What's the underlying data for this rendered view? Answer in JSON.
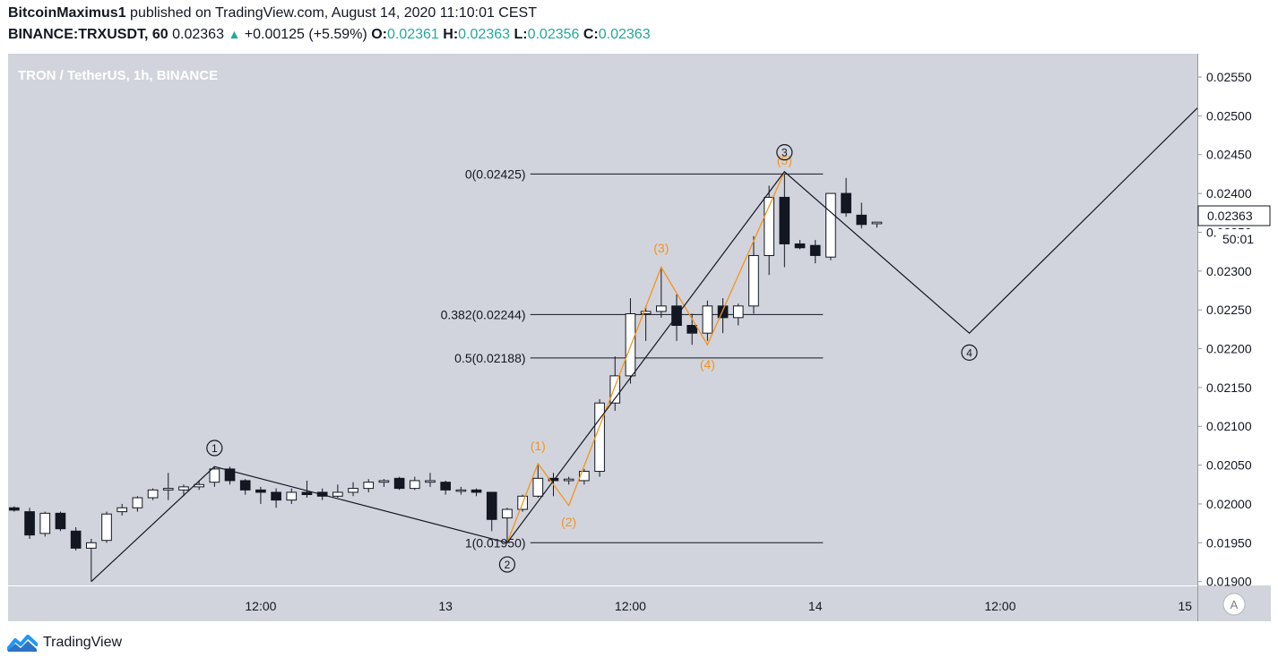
{
  "header": {
    "author": "BitcoinMaximus1",
    "published": " published on TradingView.com, August 14, 2020 11:10:01 CEST",
    "symbol": "BINANCE:TRXUSDT, 60",
    "price": "0.02363",
    "change": "+0.00125 (+5.59%)",
    "o_label": "O:",
    "o_value": "0.02361",
    "h_label": "H:",
    "h_value": "0.02363",
    "l_label": "L:",
    "l_value": "0.02356",
    "c_label": "C:",
    "c_value": "0.02363"
  },
  "footer": {
    "brand": "TradingView",
    "logo_icon": "tradingview-logo-icon"
  },
  "chart_data": {
    "type": "candlestick",
    "title": "TRON / TetherUS, 1h, BINANCE",
    "ylim": [
      0.01895,
      0.0258
    ],
    "y_ticks": [
      "0.02550",
      "0.02500",
      "0.02450",
      "0.02400",
      "0.02350",
      "0.02300",
      "0.02250",
      "0.02200",
      "0.02150",
      "0.02100",
      "0.02050",
      "0.02000",
      "0.01950",
      "0.01900"
    ],
    "x_ticks": [
      {
        "label": "12:00",
        "i": 16
      },
      {
        "label": "13",
        "i": 28
      },
      {
        "label": "12:00",
        "i": 40
      },
      {
        "label": "14",
        "i": 52
      },
      {
        "label": "12:00",
        "i": 64
      },
      {
        "label": "15",
        "i": 76
      }
    ],
    "x_range_bars": [
      -0.4,
      76.8
    ],
    "price_label": "0.02363",
    "countdown": "50:01",
    "candles": [
      {
        "o": 0.01995,
        "h": 0.01997,
        "l": 0.0199,
        "c": 0.01992
      },
      {
        "o": 0.0199,
        "h": 0.01995,
        "l": 0.01955,
        "c": 0.0196
      },
      {
        "o": 0.01962,
        "h": 0.0199,
        "l": 0.01958,
        "c": 0.01988
      },
      {
        "o": 0.01988,
        "h": 0.0199,
        "l": 0.01965,
        "c": 0.01968
      },
      {
        "o": 0.01965,
        "h": 0.0197,
        "l": 0.0194,
        "c": 0.01943
      },
      {
        "o": 0.01943,
        "h": 0.01955,
        "l": 0.019,
        "c": 0.0195
      },
      {
        "o": 0.01953,
        "h": 0.0199,
        "l": 0.0195,
        "c": 0.01987
      },
      {
        "o": 0.0199,
        "h": 0.02,
        "l": 0.01985,
        "c": 0.01995
      },
      {
        "o": 0.01995,
        "h": 0.0201,
        "l": 0.0199,
        "c": 0.02008
      },
      {
        "o": 0.02008,
        "h": 0.0202,
        "l": 0.02005,
        "c": 0.02018
      },
      {
        "o": 0.02018,
        "h": 0.0204,
        "l": 0.02005,
        "c": 0.0202
      },
      {
        "o": 0.02018,
        "h": 0.02025,
        "l": 0.0201,
        "c": 0.02022
      },
      {
        "o": 0.02022,
        "h": 0.0203,
        "l": 0.02018,
        "c": 0.02025
      },
      {
        "o": 0.02028,
        "h": 0.02048,
        "l": 0.02022,
        "c": 0.02045
      },
      {
        "o": 0.02045,
        "h": 0.02048,
        "l": 0.02025,
        "c": 0.0203
      },
      {
        "o": 0.0203,
        "h": 0.02032,
        "l": 0.02012,
        "c": 0.02018
      },
      {
        "o": 0.02018,
        "h": 0.02022,
        "l": 0.02,
        "c": 0.02015
      },
      {
        "o": 0.02015,
        "h": 0.0202,
        "l": 0.01995,
        "c": 0.02005
      },
      {
        "o": 0.02005,
        "h": 0.0202,
        "l": 0.02,
        "c": 0.02015
      },
      {
        "o": 0.02015,
        "h": 0.0203,
        "l": 0.02008,
        "c": 0.02012
      },
      {
        "o": 0.02015,
        "h": 0.0202,
        "l": 0.02005,
        "c": 0.0201
      },
      {
        "o": 0.0201,
        "h": 0.02025,
        "l": 0.02008,
        "c": 0.02015
      },
      {
        "o": 0.02015,
        "h": 0.02028,
        "l": 0.0201,
        "c": 0.0202
      },
      {
        "o": 0.0202,
        "h": 0.02032,
        "l": 0.02015,
        "c": 0.02028
      },
      {
        "o": 0.02028,
        "h": 0.02032,
        "l": 0.02022,
        "c": 0.0203
      },
      {
        "o": 0.02033,
        "h": 0.02035,
        "l": 0.02018,
        "c": 0.0202
      },
      {
        "o": 0.0202,
        "h": 0.02035,
        "l": 0.02018,
        "c": 0.0203
      },
      {
        "o": 0.02028,
        "h": 0.0204,
        "l": 0.02022,
        "c": 0.0203
      },
      {
        "o": 0.02028,
        "h": 0.0203,
        "l": 0.02012,
        "c": 0.02018
      },
      {
        "o": 0.02018,
        "h": 0.02022,
        "l": 0.02012,
        "c": 0.02018
      },
      {
        "o": 0.02018,
        "h": 0.0202,
        "l": 0.0201,
        "c": 0.02015
      },
      {
        "o": 0.02015,
        "h": 0.02012,
        "l": 0.01965,
        "c": 0.0198
      },
      {
        "o": 0.01982,
        "h": 0.01995,
        "l": 0.0195,
        "c": 0.01993
      },
      {
        "o": 0.01993,
        "h": 0.02012,
        "l": 0.0199,
        "c": 0.0201
      },
      {
        "o": 0.0201,
        "h": 0.0205,
        "l": 0.02008,
        "c": 0.02033
      },
      {
        "o": 0.02033,
        "h": 0.0204,
        "l": 0.0201,
        "c": 0.0203
      },
      {
        "o": 0.0203,
        "h": 0.02035,
        "l": 0.02025,
        "c": 0.02032
      },
      {
        "o": 0.0203,
        "h": 0.02045,
        "l": 0.02025,
        "c": 0.02042
      },
      {
        "o": 0.02042,
        "h": 0.02135,
        "l": 0.02035,
        "c": 0.0213
      },
      {
        "o": 0.0213,
        "h": 0.0219,
        "l": 0.0212,
        "c": 0.02165
      },
      {
        "o": 0.02165,
        "h": 0.02265,
        "l": 0.02155,
        "c": 0.02245
      },
      {
        "o": 0.02245,
        "h": 0.02255,
        "l": 0.0221,
        "c": 0.02248
      },
      {
        "o": 0.02248,
        "h": 0.02305,
        "l": 0.0224,
        "c": 0.02255
      },
      {
        "o": 0.02255,
        "h": 0.0227,
        "l": 0.0221,
        "c": 0.0223
      },
      {
        "o": 0.0223,
        "h": 0.02245,
        "l": 0.02205,
        "c": 0.0222
      },
      {
        "o": 0.0222,
        "h": 0.02262,
        "l": 0.0221,
        "c": 0.02255
      },
      {
        "o": 0.02255,
        "h": 0.02265,
        "l": 0.0222,
        "c": 0.0224
      },
      {
        "o": 0.0224,
        "h": 0.02258,
        "l": 0.0223,
        "c": 0.02255
      },
      {
        "o": 0.02255,
        "h": 0.02345,
        "l": 0.02245,
        "c": 0.0232
      },
      {
        "o": 0.0232,
        "h": 0.0241,
        "l": 0.02295,
        "c": 0.02395
      },
      {
        "o": 0.02395,
        "h": 0.02425,
        "l": 0.02305,
        "c": 0.02335
      },
      {
        "o": 0.02335,
        "h": 0.0234,
        "l": 0.02328,
        "c": 0.0233
      },
      {
        "o": 0.02333,
        "h": 0.0234,
        "l": 0.0231,
        "c": 0.0232
      },
      {
        "o": 0.02318,
        "h": 0.024,
        "l": 0.02314,
        "c": 0.024
      },
      {
        "o": 0.024,
        "h": 0.0242,
        "l": 0.0237,
        "c": 0.02375
      },
      {
        "o": 0.02372,
        "h": 0.02388,
        "l": 0.02355,
        "c": 0.0236
      },
      {
        "o": 0.02361,
        "h": 0.02363,
        "l": 0.02356,
        "c": 0.02363
      }
    ],
    "fib_levels": [
      {
        "label": "0(0.02425)",
        "value": 0.02425
      },
      {
        "label": "0.382(0.02244)",
        "value": 0.02244
      },
      {
        "label": "0.5(0.02188)",
        "value": 0.02188
      },
      {
        "label": "1(0.01950)",
        "value": 0.0195
      }
    ],
    "major_wave": [
      {
        "i": 5,
        "v": 0.019
      },
      {
        "i": 13,
        "v": 0.02048
      },
      {
        "i": 32,
        "v": 0.0195
      },
      {
        "i": 50,
        "v": 0.02428
      },
      {
        "i": 62,
        "v": 0.0222
      },
      {
        "i": 76.8,
        "v": 0.0251
      }
    ],
    "minor_wave": [
      {
        "i": 32,
        "v": 0.0195
      },
      {
        "i": 34,
        "v": 0.02052
      },
      {
        "i": 36,
        "v": 0.01998
      },
      {
        "i": 42,
        "v": 0.02305
      },
      {
        "i": 45,
        "v": 0.02205
      },
      {
        "i": 50,
        "v": 0.02428
      }
    ],
    "major_labels": [
      {
        "text": "1",
        "i": 13,
        "v": 0.02072
      },
      {
        "text": "2",
        "i": 32,
        "v": 0.01922
      },
      {
        "text": "3",
        "i": 50,
        "v": 0.02453
      },
      {
        "text": "4",
        "i": 62,
        "v": 0.02195
      }
    ],
    "minor_labels": [
      {
        "text": "(1)",
        "i": 34,
        "v": 0.02075
      },
      {
        "text": "(2)",
        "i": 36,
        "v": 0.01977
      },
      {
        "text": "(3)",
        "i": 42,
        "v": 0.0233
      },
      {
        "text": "(4)",
        "i": 45,
        "v": 0.0218
      },
      {
        "text": "(5)",
        "i": 50,
        "v": 0.02443
      }
    ],
    "colors": {
      "bg": "#d1d4dc",
      "up": "#ffffff",
      "down": "#131722",
      "major": "#131722",
      "minor": "#f7931a"
    }
  }
}
